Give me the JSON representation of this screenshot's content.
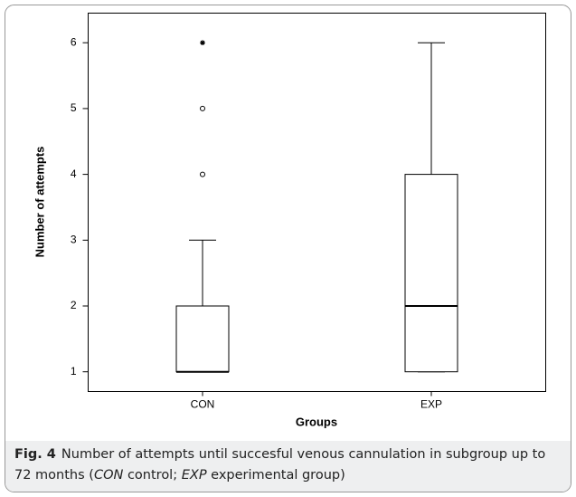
{
  "chart_data": {
    "type": "box",
    "x_label": "Groups",
    "y_label": "Number of attempts",
    "categories": [
      "CON",
      "EXP"
    ],
    "boxes": [
      {
        "whisker_low": 1,
        "q1": 1,
        "median": 1,
        "q3": 2,
        "whisker_high": 3,
        "outliers": [
          4,
          5
        ],
        "extremes": [
          6
        ]
      },
      {
        "whisker_low": 1,
        "q1": 1,
        "median": 2,
        "q3": 4,
        "whisker_high": 6,
        "outliers": [],
        "extremes": []
      }
    ],
    "ylim": [
      0.7,
      6.45
    ],
    "yticks": [
      1,
      2,
      3,
      4,
      5,
      6
    ]
  },
  "caption": {
    "label": "Fig. 4",
    "text": [
      "Number of attempts until succesful venous cannulation in subgroup up to 72 months (",
      "CON",
      " control; ",
      "EXP",
      " experimental group)"
    ]
  }
}
